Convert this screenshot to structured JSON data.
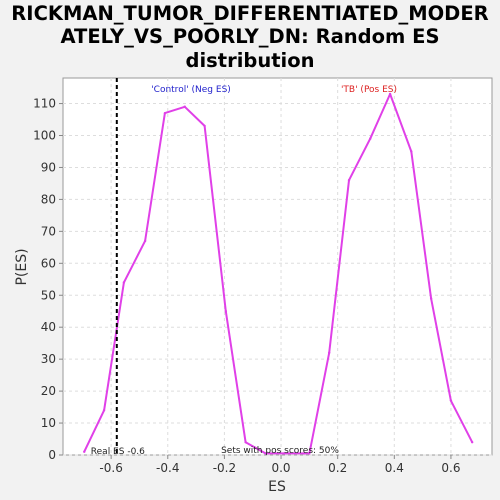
{
  "chart_data": {
    "type": "line",
    "title_lines": [
      "RICKMAN_TUMOR_DIFFERENTIATED_MODER",
      "ATELY_VS_POORLY_DN: Random ES",
      "distribution"
    ],
    "xlabel": "ES",
    "ylabel": "P(ES)",
    "xlim": [
      -0.77,
      0.745
    ],
    "ylim": [
      0,
      118
    ],
    "x_ticks": [
      -0.6,
      -0.4,
      -0.2,
      0.0,
      0.2,
      0.4,
      0.6
    ],
    "x_tick_labels": [
      "-0.6",
      "-0.4",
      "-0.2",
      "0.0",
      "0.2",
      "0.4",
      "0.6"
    ],
    "y_ticks": [
      0,
      10,
      20,
      30,
      40,
      50,
      60,
      70,
      80,
      90,
      100,
      110
    ],
    "y_tick_labels": [
      "0",
      "10",
      "20",
      "30",
      "40",
      "50",
      "60",
      "70",
      "80",
      "90",
      "100",
      "110"
    ],
    "grid": true,
    "series": [
      {
        "color": "#e040e8",
        "x": [
          -0.695,
          -0.625,
          -0.555,
          -0.48,
          -0.41,
          -0.34,
          -0.27,
          -0.195,
          -0.125,
          -0.055,
          0.01,
          0.08,
          0.1,
          0.17,
          0.24,
          0.315,
          0.385,
          0.46,
          0.53,
          0.6,
          0.675
        ],
        "y": [
          1,
          14,
          54,
          67,
          107,
          109,
          103,
          45,
          4,
          0.5,
          0.5,
          0.5,
          0.5,
          32,
          86,
          99,
          113,
          95,
          49,
          17,
          4
        ]
      }
    ],
    "real_es_line": {
      "x": -0.58,
      "label": "Real ES -0.6"
    },
    "annotations": [
      {
        "text": "'Control' (Neg ES)",
        "color": "#2222cc"
      },
      {
        "text": "'TB' (Pos ES)",
        "color": "#dd2222"
      },
      {
        "text": "Sets with pos scores: 50%",
        "color": "#222222"
      }
    ]
  }
}
